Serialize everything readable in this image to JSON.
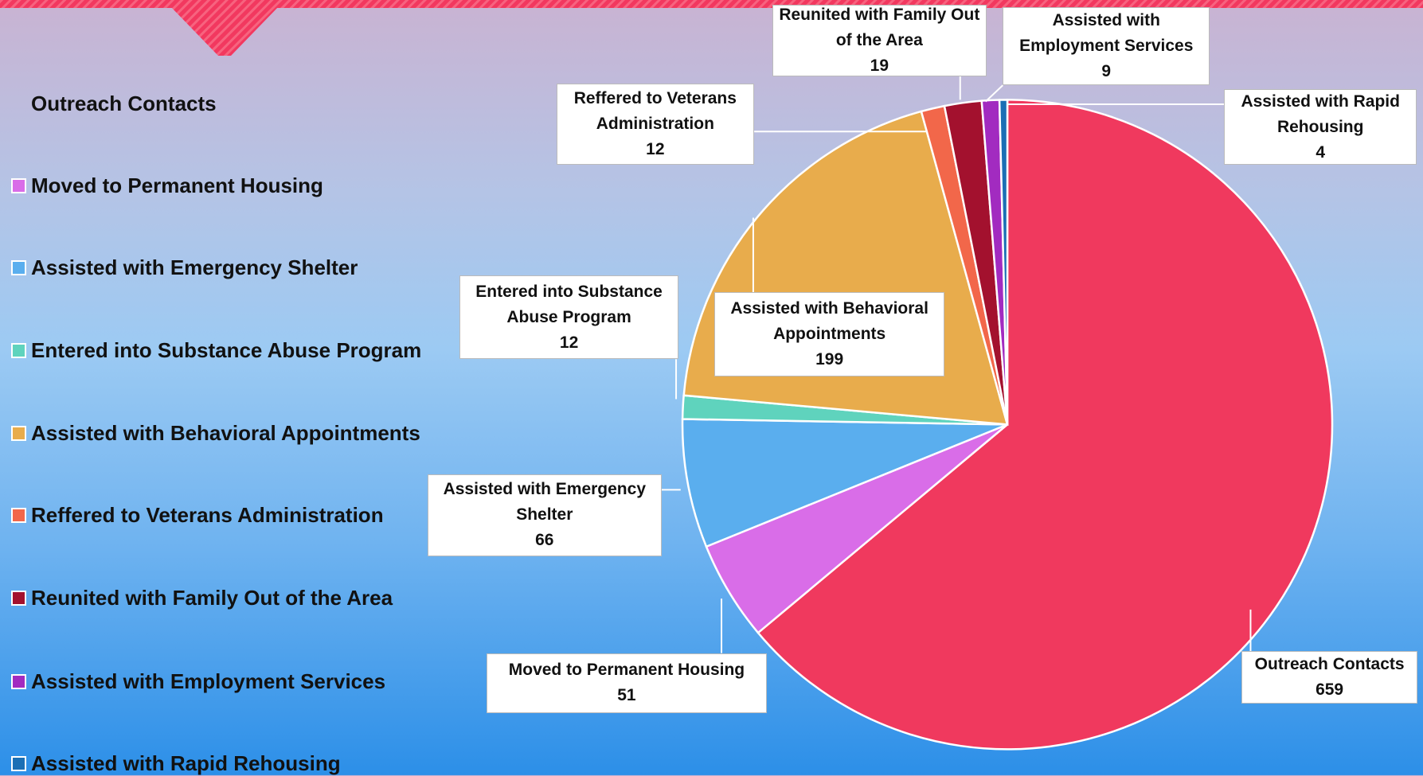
{
  "chart_data": {
    "type": "pie",
    "categories": [
      "Outreach Contacts",
      "Moved to Permanent Housing",
      "Assisted with Emergency Shelter",
      "Entered into Substance Abuse Program",
      "Assisted with Behavioral Appointments",
      "Reffered to Veterans Administration",
      "Reunited with Family Out of the Area",
      "Assisted with Employment Services",
      "Assisted with Rapid Rehousing"
    ],
    "values": [
      659,
      51,
      66,
      12,
      199,
      12,
      19,
      9,
      4
    ],
    "colors": [
      "#f0395e",
      "#d96de8",
      "#5aaeee",
      "#5fd3bd",
      "#e8ac4c",
      "#f2674a",
      "#a3112e",
      "#a22bc0",
      "#1b6fb5"
    ],
    "legend": "left"
  }
}
